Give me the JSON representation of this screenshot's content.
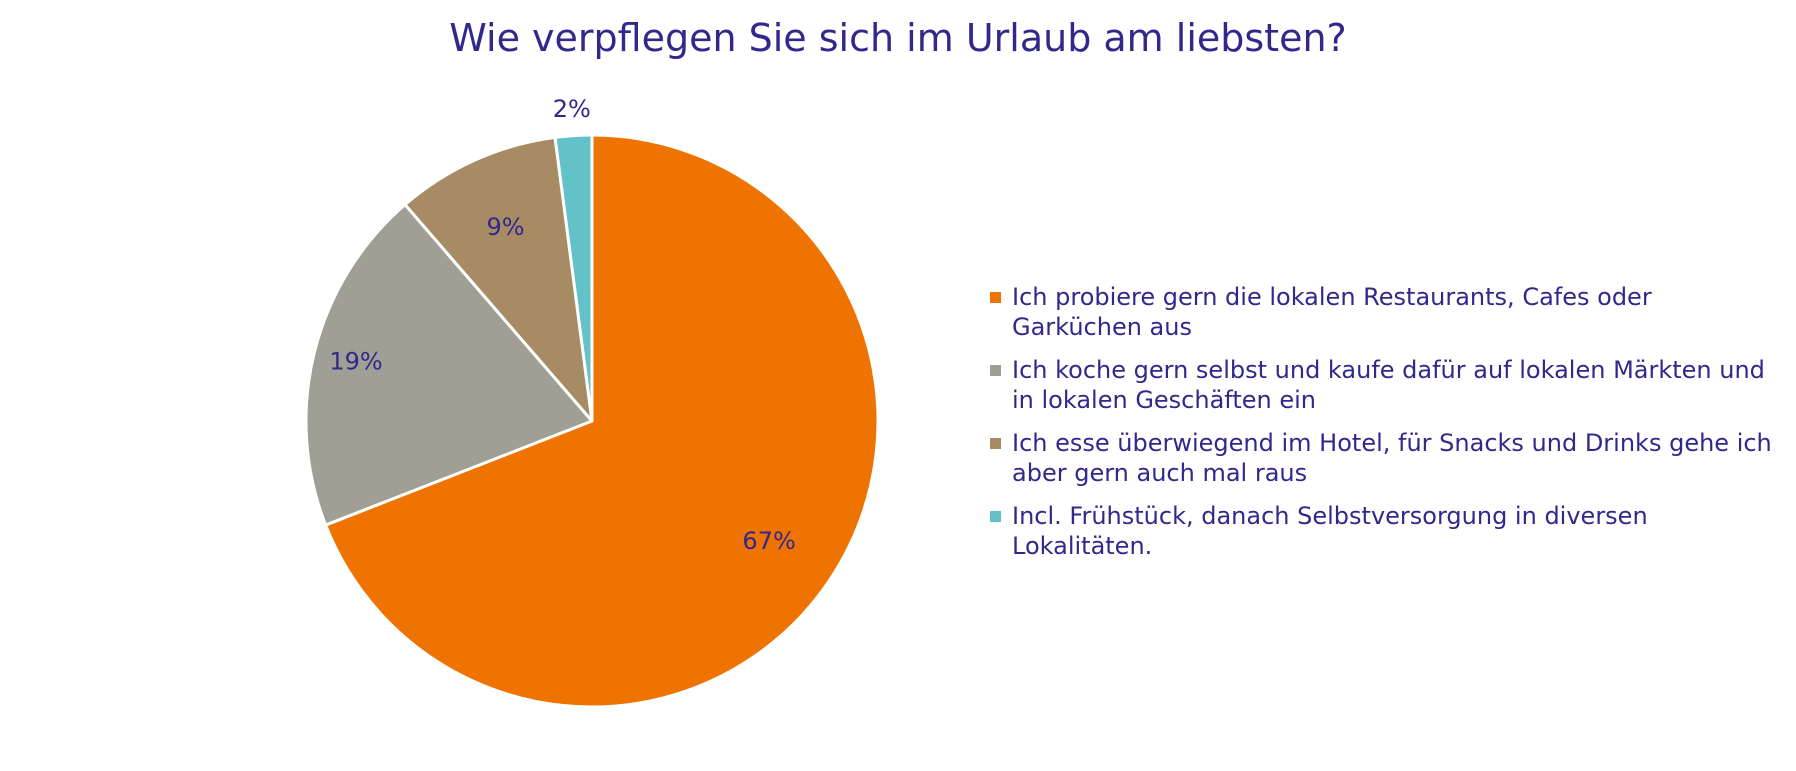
{
  "chart_data": {
    "type": "pie",
    "title": "Wie verpflegen Sie sich im Urlaub am liebsten?",
    "legend_position": "right",
    "slices": [
      {
        "label": "Ich probiere gern die lokalen Restaurants, Cafes oder Garküchen aus",
        "value": 67,
        "value_label": "67%",
        "color": "#ef7300"
      },
      {
        "label": "Ich koche gern selbst und kaufe dafür auf lokalen Märkten und in lokalen Geschäften ein",
        "value": 19,
        "value_label": "19%",
        "color": "#a09f95"
      },
      {
        "label": "Ich esse überwiegend im Hotel, für Snacks und Drinks gehe ich aber gern auch mal raus",
        "value": 9,
        "value_label": "9%",
        "color": "#a68b64"
      },
      {
        "label": "Incl. Frühstück, danach Selbstversorgung in diversen Lokalitäten.",
        "value": 2,
        "value_label": "2%",
        "color": "#63c2c8"
      }
    ]
  }
}
